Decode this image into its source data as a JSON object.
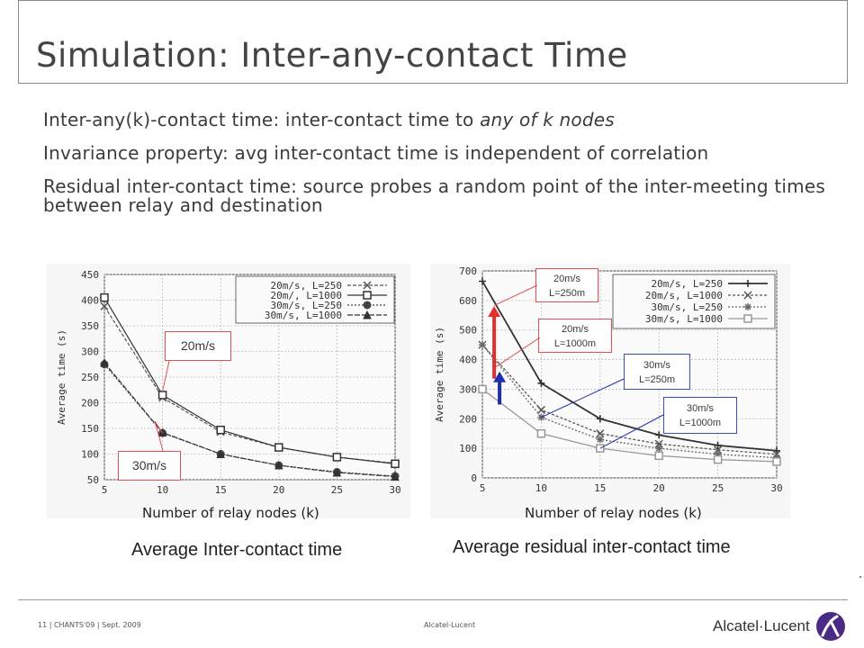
{
  "slide": {
    "title": "Simulation: Inter-any-contact Time",
    "bullets": [
      {
        "pre": "Inter-any(k)-contact time: inter-contact time to ",
        "em": "any of k nodes",
        "post": ""
      },
      {
        "pre": "Invariance property: avg inter-contact time is independent of correlation",
        "em": "",
        "post": ""
      },
      {
        "pre": "Residual inter-contact time: source probes a random point of the inter-meeting times between relay and destination",
        "em": "",
        "post": ""
      }
    ],
    "captions": {
      "left": "Average Inter-contact time",
      "right": "Average residual inter-contact time"
    },
    "callouts": {
      "left_20": "20m/s",
      "left_30": "30m/s",
      "right_20_250": [
        "20m/s",
        "L=250m"
      ],
      "right_20_1000": [
        "20m/s",
        "L=1000m"
      ],
      "right_30_250": [
        "30m/s",
        "L=250m"
      ],
      "right_30_1000": [
        "30m/s",
        "L=1000m"
      ]
    },
    "footer": {
      "left": "11 | CHANTS'09 | Sept. 2009",
      "center": "Alcatel-Lucent",
      "logo": "Alcatel·Lucent"
    },
    "colors": {
      "red": "#e03030",
      "blue": "#1c2fb0",
      "logo_purple": "#4b2a86"
    }
  },
  "chart_data": [
    {
      "type": "line",
      "xlabel": "Number of relay nodes (k)",
      "ylabel": "Average time (s)",
      "x": [
        5,
        10,
        15,
        20,
        25,
        30
      ],
      "xlim": [
        5,
        30
      ],
      "ylim": [
        50,
        450
      ],
      "yticks": [
        50,
        100,
        150,
        200,
        250,
        300,
        350,
        400,
        450
      ],
      "xticks": [
        5,
        10,
        15,
        20,
        25,
        30
      ],
      "legend_position": "top-right",
      "grid": true,
      "series": [
        {
          "name": "20m/s, L=250",
          "marker": "x",
          "values": [
            388,
            210,
            143,
            113,
            94,
            82
          ]
        },
        {
          "name": "20m/, L=1000",
          "marker": "square",
          "values": [
            405,
            215,
            147,
            113,
            94,
            81
          ]
        },
        {
          "name": "30m/s, L=250",
          "marker": "circle",
          "values": [
            275,
            141,
            100,
            78,
            65,
            57
          ]
        },
        {
          "name": "30m/s, L=1000",
          "marker": "triangle",
          "values": [
            278,
            142,
            100,
            78,
            64,
            56
          ]
        }
      ]
    },
    {
      "type": "line",
      "xlabel": "Number of relay nodes (k)",
      "ylabel": "Average time (s)",
      "x": [
        5,
        10,
        15,
        20,
        25,
        30
      ],
      "xlim": [
        5,
        30
      ],
      "ylim": [
        0,
        700
      ],
      "yticks": [
        0,
        100,
        200,
        300,
        400,
        500,
        600,
        700
      ],
      "xticks": [
        5,
        10,
        15,
        20,
        25,
        30
      ],
      "legend_position": "top-right",
      "grid": true,
      "series": [
        {
          "name": "20m/s, L=250",
          "marker": "plus",
          "values": [
            665,
            320,
            200,
            145,
            110,
            92
          ]
        },
        {
          "name": "20m/s, L=1000",
          "marker": "x",
          "values": [
            450,
            230,
            150,
            115,
            95,
            80
          ]
        },
        {
          "name": "30m/s, L=250",
          "marker": "star",
          "values": [
            450,
            205,
            130,
            100,
            80,
            68
          ]
        },
        {
          "name": "30m/s, L=1000",
          "marker": "square",
          "values": [
            300,
            150,
            100,
            75,
            62,
            55
          ]
        }
      ]
    }
  ]
}
